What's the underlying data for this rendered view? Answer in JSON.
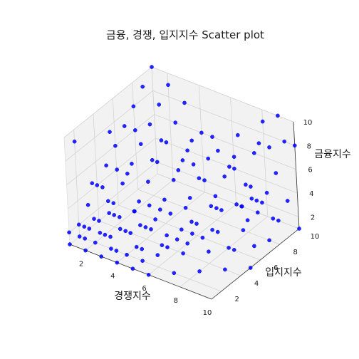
{
  "chart_data": {
    "type": "scatter",
    "projection": "3d",
    "title": "금융, 경쟁, 입지지수 Scatter plot",
    "xlabel": "경쟁지수",
    "ylabel": "입지지수",
    "zlabel": "금융지수",
    "xlim": [
      1,
      10
    ],
    "ylim": [
      1,
      10
    ],
    "zlim": [
      1,
      10
    ],
    "xticks": [
      2,
      4,
      6,
      8,
      10
    ],
    "yticks": [
      2,
      4,
      6,
      8,
      10
    ],
    "zticks": [
      2,
      4,
      6,
      8,
      10
    ],
    "grid": true,
    "marker_color": "#0000ff",
    "points": [
      [
        1,
        1,
        1
      ],
      [
        2,
        1,
        1
      ],
      [
        3,
        1,
        1
      ],
      [
        4,
        1,
        1
      ],
      [
        5,
        1,
        1
      ],
      [
        6,
        1,
        1
      ],
      [
        1,
        2,
        1
      ],
      [
        2,
        2,
        1
      ],
      [
        3,
        2,
        1
      ],
      [
        4,
        2,
        1
      ],
      [
        5,
        2,
        1
      ],
      [
        7,
        2,
        1
      ],
      [
        1,
        3,
        1
      ],
      [
        2,
        3,
        1
      ],
      [
        3,
        3,
        2
      ],
      [
        4,
        3,
        1
      ],
      [
        6,
        3,
        2
      ],
      [
        8,
        3,
        1
      ],
      [
        1,
        4,
        1
      ],
      [
        2,
        4,
        2
      ],
      [
        3,
        4,
        1
      ],
      [
        5,
        4,
        1
      ],
      [
        6,
        4,
        2
      ],
      [
        9,
        4,
        1
      ],
      [
        1,
        5,
        2
      ],
      [
        3,
        5,
        1
      ],
      [
        4,
        5,
        2
      ],
      [
        6,
        5,
        1
      ],
      [
        7,
        5,
        2
      ],
      [
        10,
        5,
        1
      ],
      [
        2,
        6,
        1
      ],
      [
        3,
        6,
        2
      ],
      [
        5,
        6,
        1
      ],
      [
        7,
        6,
        2
      ],
      [
        8,
        6,
        1
      ],
      [
        9,
        7,
        1
      ],
      [
        1,
        2,
        2
      ],
      [
        2,
        2,
        3
      ],
      [
        3,
        3,
        3
      ],
      [
        4,
        4,
        2
      ],
      [
        5,
        5,
        3
      ],
      [
        6,
        6,
        2
      ],
      [
        7,
        7,
        3
      ],
      [
        8,
        8,
        2
      ],
      [
        9,
        9,
        2
      ],
      [
        10,
        10,
        1
      ],
      [
        1,
        3,
        3
      ],
      [
        2,
        4,
        3
      ],
      [
        3,
        5,
        3
      ],
      [
        4,
        6,
        3
      ],
      [
        5,
        7,
        3
      ],
      [
        6,
        8,
        3
      ],
      [
        7,
        9,
        2
      ],
      [
        8,
        9,
        3
      ],
      [
        1,
        4,
        4
      ],
      [
        2,
        5,
        4
      ],
      [
        3,
        6,
        4
      ],
      [
        4,
        7,
        4
      ],
      [
        5,
        8,
        4
      ],
      [
        6,
        9,
        4
      ],
      [
        7,
        10,
        3
      ],
      [
        1,
        5,
        5
      ],
      [
        2,
        6,
        5
      ],
      [
        3,
        7,
        5
      ],
      [
        4,
        8,
        5
      ],
      [
        5,
        9,
        5
      ],
      [
        6,
        10,
        4
      ],
      [
        1,
        6,
        6
      ],
      [
        2,
        7,
        6
      ],
      [
        3,
        8,
        6
      ],
      [
        4,
        9,
        6
      ],
      [
        5,
        10,
        5
      ],
      [
        1,
        7,
        7
      ],
      [
        2,
        8,
        7
      ],
      [
        3,
        9,
        7
      ],
      [
        4,
        10,
        6
      ],
      [
        1,
        8,
        8
      ],
      [
        2,
        9,
        8
      ],
      [
        3,
        10,
        8
      ],
      [
        1,
        9,
        9
      ],
      [
        2,
        10,
        9
      ],
      [
        1,
        10,
        10
      ],
      [
        2,
        3,
        5
      ],
      [
        3,
        4,
        6
      ],
      [
        4,
        5,
        7
      ],
      [
        2,
        2,
        6
      ],
      [
        3,
        3,
        7
      ],
      [
        1,
        2,
        9
      ],
      [
        6,
        7,
        5
      ],
      [
        7,
        8,
        6
      ],
      [
        8,
        9,
        7
      ],
      [
        5,
        6,
        6
      ],
      [
        6,
        6,
        7
      ],
      [
        8,
        7,
        8
      ],
      [
        9,
        8,
        9
      ],
      [
        10,
        9,
        9
      ],
      [
        10,
        10,
        8
      ],
      [
        9,
        10,
        10
      ],
      [
        8,
        10,
        9
      ],
      [
        7,
        9,
        8
      ],
      [
        6,
        8,
        8
      ],
      [
        5,
        7,
        7
      ],
      [
        4,
        6,
        8
      ],
      [
        3,
        5,
        9
      ],
      [
        2,
        4,
        9
      ],
      [
        7,
        4,
        3
      ],
      [
        8,
        5,
        3
      ],
      [
        9,
        6,
        3
      ],
      [
        10,
        7,
        2
      ],
      [
        10,
        8,
        3
      ],
      [
        9,
        5,
        2
      ],
      [
        8,
        4,
        2
      ],
      [
        7,
        3,
        2
      ],
      [
        6,
        2,
        2
      ],
      [
        5,
        3,
        3
      ],
      [
        4,
        3,
        4
      ],
      [
        3,
        2,
        4
      ],
      [
        2,
        1,
        3
      ],
      [
        3,
        1,
        3
      ],
      [
        4,
        2,
        3
      ],
      [
        5,
        4,
        4
      ],
      [
        6,
        5,
        4
      ],
      [
        7,
        6,
        4
      ],
      [
        8,
        7,
        4
      ],
      [
        9,
        8,
        4
      ],
      [
        10,
        9,
        4
      ],
      [
        10,
        6,
        5
      ],
      [
        9,
        7,
        5
      ],
      [
        8,
        8,
        5
      ],
      [
        1,
        1,
        2
      ],
      [
        2,
        1,
        2
      ],
      [
        3,
        2,
        2
      ],
      [
        4,
        1,
        2
      ],
      [
        5,
        2,
        2
      ],
      [
        6,
        3,
        3
      ],
      [
        7,
        4,
        4
      ],
      [
        8,
        5,
        5
      ],
      [
        9,
        6,
        5
      ],
      [
        10,
        7,
        6
      ],
      [
        10,
        8,
        7
      ],
      [
        9,
        9,
        8
      ]
    ]
  }
}
